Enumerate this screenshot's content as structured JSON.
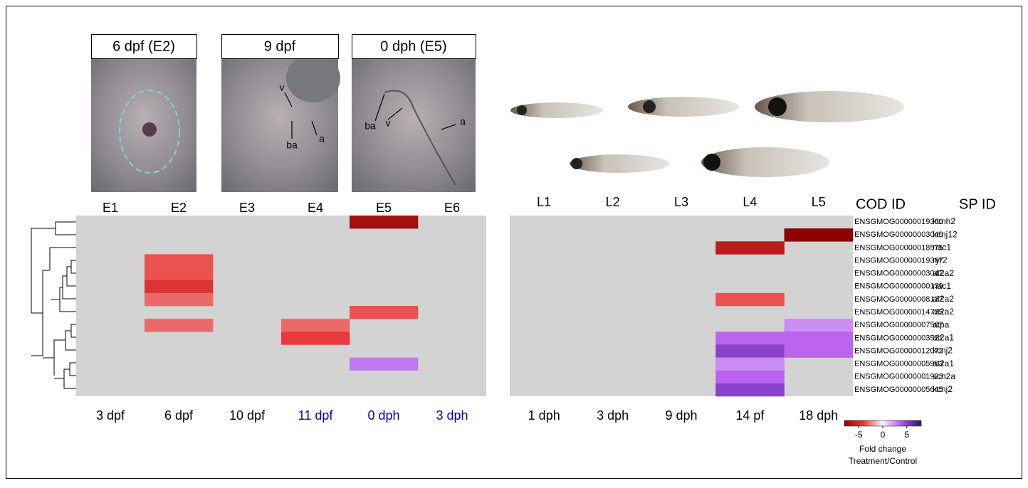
{
  "images": [
    {
      "title": "6 dpf (E2)",
      "annotations": []
    },
    {
      "title": "9 dpf",
      "annotations": [
        "v",
        "ba",
        "a"
      ]
    },
    {
      "title": "0 dph (E5)",
      "annotations": [
        "ba",
        "v",
        "a"
      ]
    }
  ],
  "chart_data": [
    {
      "type": "heatmap",
      "columns": [
        "E1",
        "E2",
        "E3",
        "E4",
        "E5",
        "E6"
      ],
      "categories": [
        "3 dpf",
        "6 dpf",
        "10 dpf",
        "11 dpf",
        "0 dph",
        "3 dph"
      ],
      "category_colors": [
        "#000000",
        "#000000",
        "#000000",
        "#0000cc",
        "#0000cc",
        "#0000cc"
      ],
      "values": [
        [
          null,
          null,
          null,
          null,
          -7,
          null
        ],
        [
          null,
          null,
          null,
          null,
          null,
          null
        ],
        [
          null,
          null,
          null,
          null,
          null,
          null
        ],
        [
          null,
          -3.5,
          null,
          null,
          null,
          null
        ],
        [
          null,
          -3.5,
          null,
          null,
          null,
          null
        ],
        [
          null,
          -4.5,
          null,
          null,
          null,
          null
        ],
        [
          null,
          -3,
          null,
          null,
          null,
          null
        ],
        [
          null,
          null,
          null,
          null,
          -3.5,
          null
        ],
        [
          null,
          -3,
          null,
          -3,
          null,
          null
        ],
        [
          null,
          null,
          null,
          -4,
          null,
          null
        ],
        [
          null,
          null,
          null,
          null,
          null,
          null
        ],
        [
          null,
          null,
          null,
          null,
          3,
          null
        ],
        [
          null,
          null,
          null,
          null,
          null,
          null
        ],
        [
          null,
          null,
          null,
          null,
          null,
          null
        ]
      ]
    },
    {
      "type": "heatmap",
      "columns": [
        "L1",
        "L2",
        "L3",
        "L4",
        "L5"
      ],
      "categories": [
        "1 dph",
        "3 dph",
        "9 dph",
        "14 pf",
        "18 dph"
      ],
      "category_colors": [
        "#000000",
        "#000000",
        "#000000",
        "#000000",
        "#000000"
      ],
      "values": [
        [
          null,
          null,
          null,
          null,
          null
        ],
        [
          null,
          null,
          null,
          null,
          -8
        ],
        [
          null,
          null,
          null,
          -6,
          null
        ],
        [
          null,
          null,
          null,
          null,
          null
        ],
        [
          null,
          null,
          null,
          null,
          null
        ],
        [
          null,
          null,
          null,
          null,
          null
        ],
        [
          null,
          null,
          null,
          -3.5,
          null
        ],
        [
          null,
          null,
          null,
          null,
          null
        ],
        [
          null,
          null,
          null,
          null,
          2.5
        ],
        [
          null,
          null,
          null,
          3.5,
          3.5
        ],
        [
          null,
          null,
          null,
          5,
          3.5
        ],
        [
          null,
          null,
          null,
          2.5,
          null
        ],
        [
          null,
          null,
          null,
          3.5,
          null
        ],
        [
          null,
          null,
          null,
          5,
          null
        ]
      ],
      "row_header": "COD ID",
      "symbol_header": "SP ID",
      "row_ids": [
        "ENSGMOG00000019360",
        "ENSGMOG00000003040",
        "ENSGMOG00000018575",
        "ENSGMOG00000019367",
        "ENSGMOG00000003047",
        "ENSGMOG00000000139",
        "ENSGMOG00000008137",
        "ENSGMOG00000014735",
        "ENSGMOG00000007507",
        "ENSGMOG00000003521",
        "ENSGMOG00000012072",
        "ENSGMOG00000005903",
        "ENSGMOG00000001923",
        "ENSGMOG00000005645"
      ],
      "row_symbols": [
        "kcnh2",
        "kcnj12",
        "nac1",
        "ryr2",
        "at2a2",
        "nac1",
        "at2a2",
        "at2a2",
        "atpa",
        "at2a1",
        "kcnj2",
        "at2a1",
        "scn2a",
        "kcnj2"
      ]
    }
  ],
  "colorbar": {
    "clim": [
      -8,
      8
    ],
    "ticks": [
      -5,
      0,
      5
    ],
    "colors": [
      "#8b0000",
      "#e83a3a",
      "#f5f5f5",
      "#b04ef0",
      "#1c1c5a"
    ],
    "na_color": "#d3d3d3",
    "label": [
      "Fold change",
      "Treatment/Control"
    ]
  }
}
